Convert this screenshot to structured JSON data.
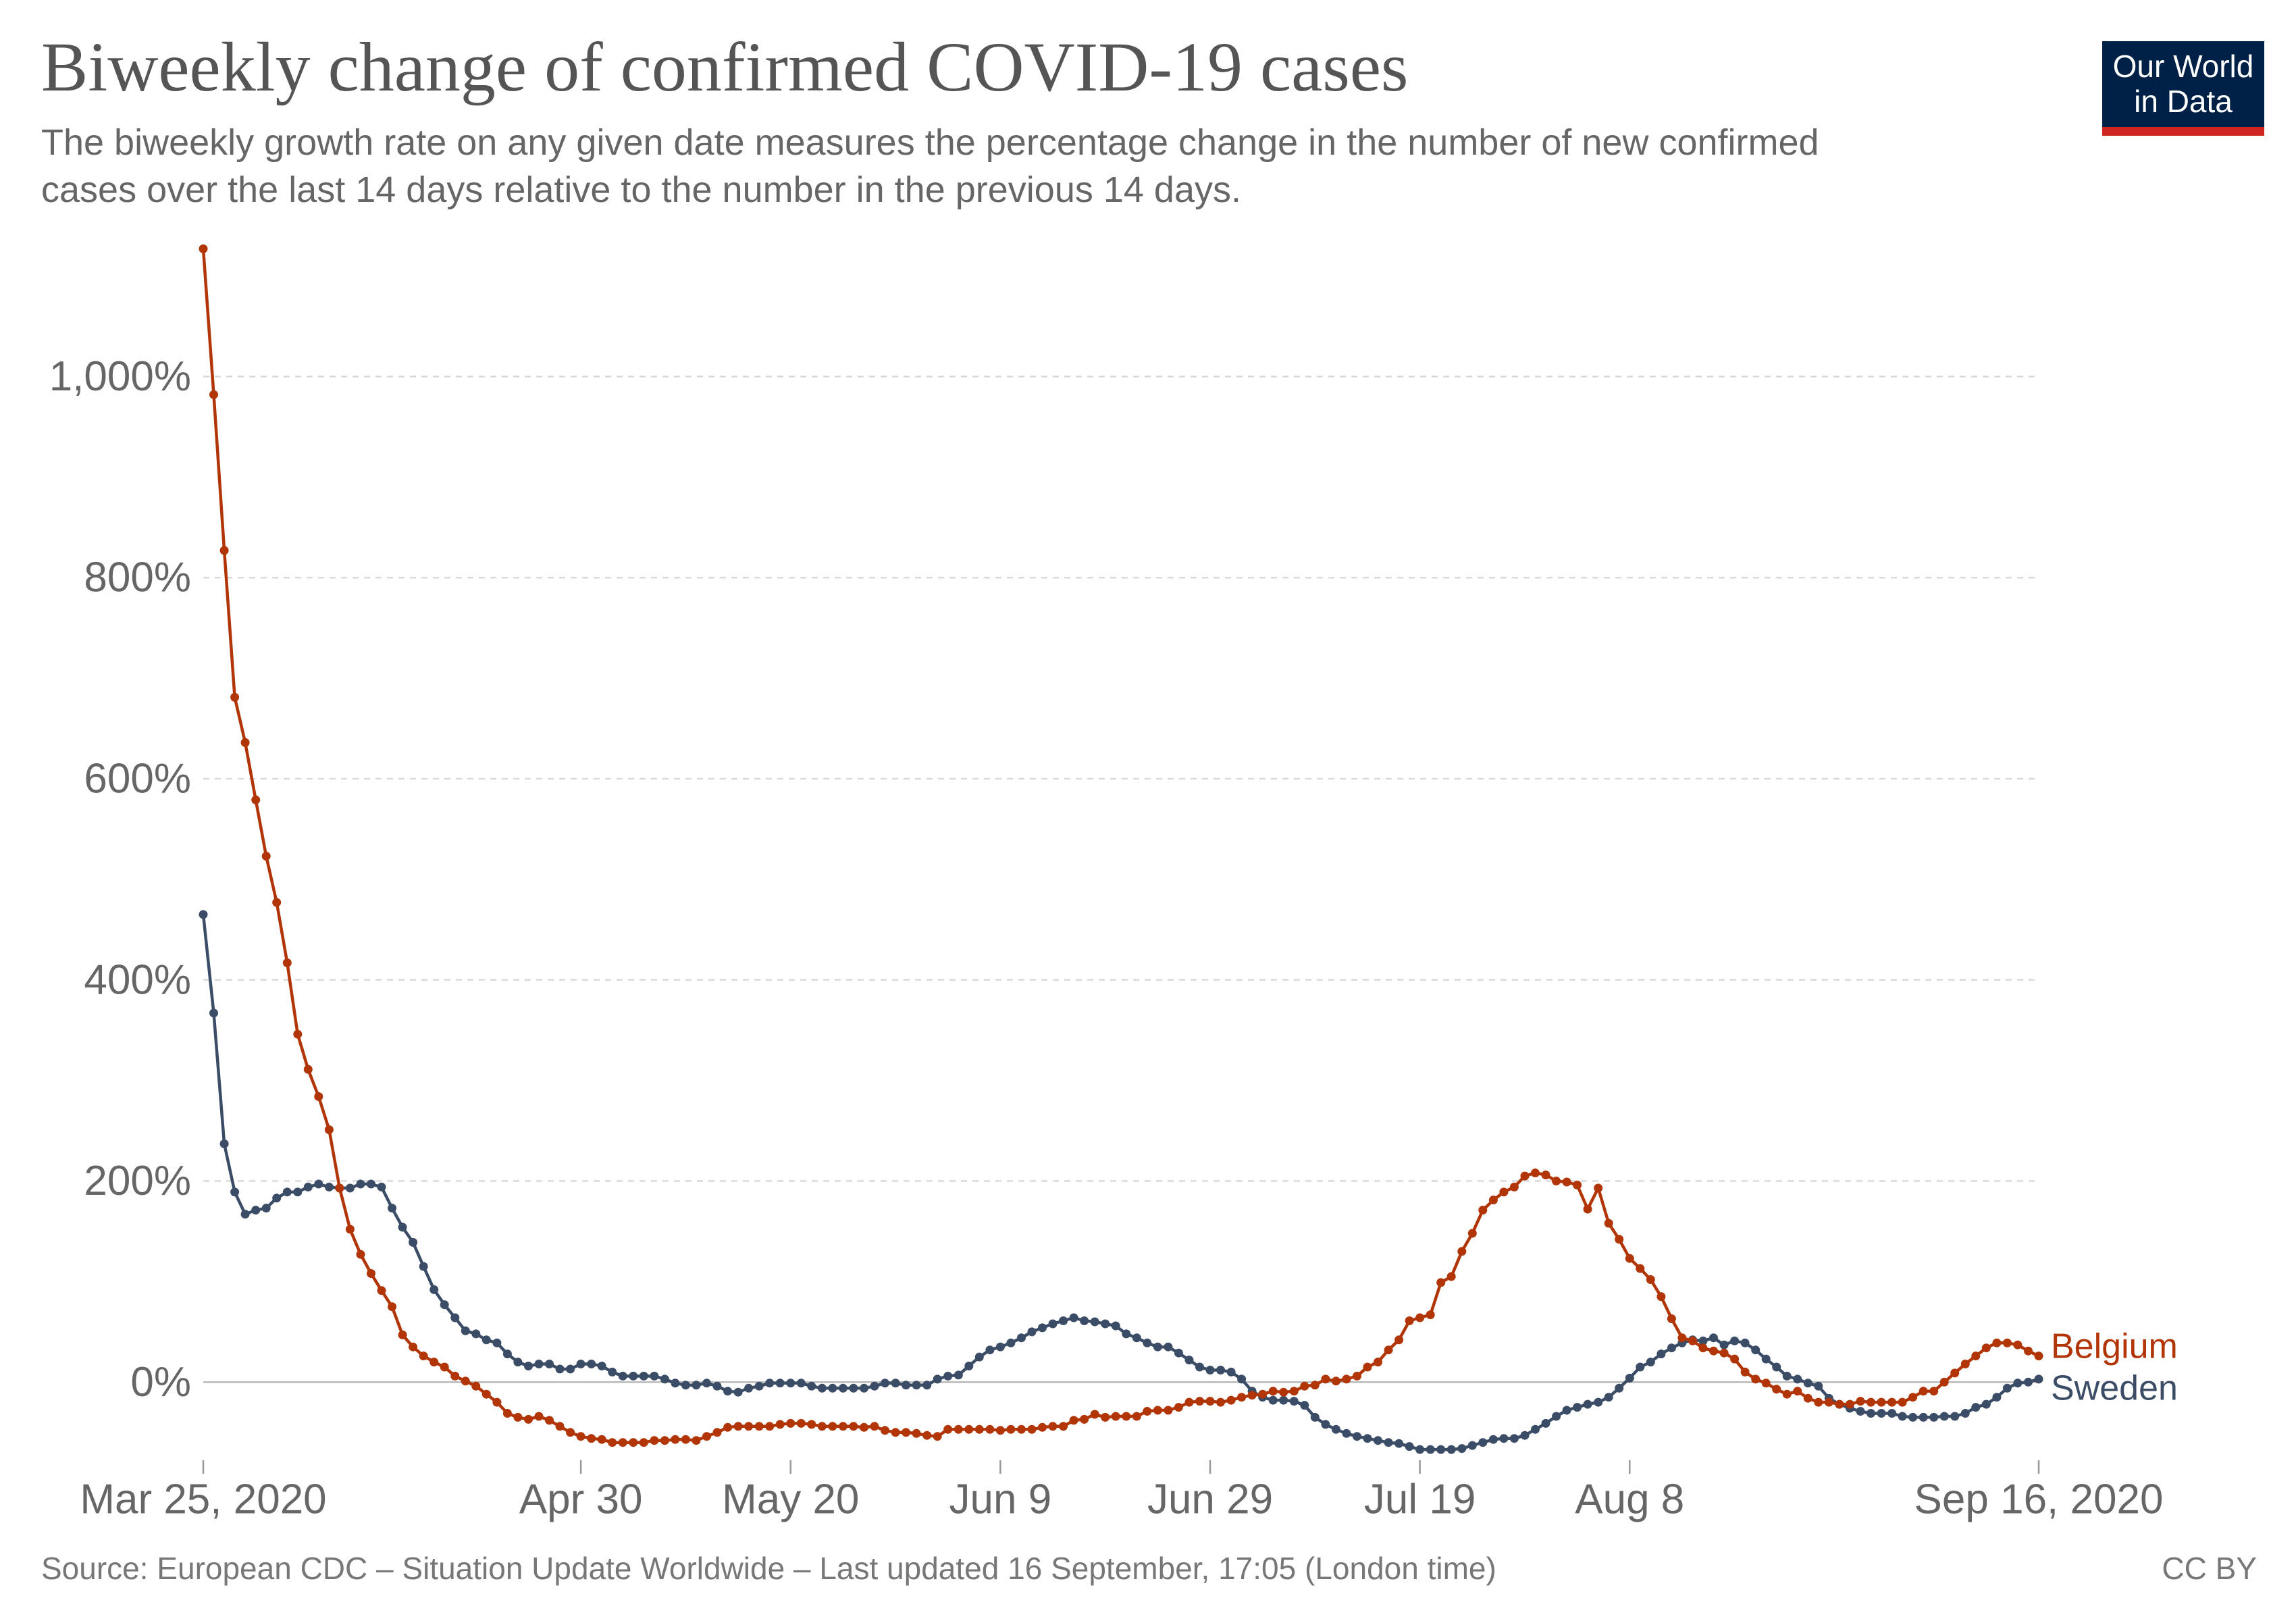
{
  "logo": {
    "line1": "Our World",
    "line2": "in Data",
    "background_color": "#002147",
    "accent_color": "#ce261e"
  },
  "footer": {
    "source": "Source: European CDC – Situation Update Worldwide – Last updated 16 September, 17:05 (London time)",
    "license": "CC BY"
  },
  "chart_data": {
    "type": "line",
    "title": "Biweekly change of confirmed COVID-19 cases",
    "subtitle_lines": [
      "The biweekly growth rate on any given date measures the percentage change in the number of new confirmed",
      "cases over the last 14 days relative to the number in the previous 14 days."
    ],
    "markers": true,
    "grid": true,
    "legend": "labels at line ends, right",
    "ylim": [
      -75,
      1140
    ],
    "yticks": [
      {
        "value": 0,
        "label": "0%"
      },
      {
        "value": 200,
        "label": "200%"
      },
      {
        "value": 400,
        "label": "400%"
      },
      {
        "value": 600,
        "label": "600%"
      },
      {
        "value": 800,
        "label": "800%"
      },
      {
        "value": 1000,
        "label": "1,000%"
      }
    ],
    "xticks": [
      {
        "date": "2020-03-25",
        "label": "Mar 25, 2020"
      },
      {
        "date": "2020-04-30",
        "label": "Apr 30"
      },
      {
        "date": "2020-05-20",
        "label": "May 20"
      },
      {
        "date": "2020-06-09",
        "label": "Jun 9"
      },
      {
        "date": "2020-06-29",
        "label": "Jun 29"
      },
      {
        "date": "2020-07-19",
        "label": "Jul 19"
      },
      {
        "date": "2020-08-08",
        "label": "Aug 8"
      },
      {
        "date": "2020-09-16",
        "label": "Sep 16, 2020"
      }
    ],
    "x": [
      "2020-03-25",
      "2020-03-26",
      "2020-03-27",
      "2020-03-28",
      "2020-03-29",
      "2020-03-30",
      "2020-03-31",
      "2020-04-01",
      "2020-04-02",
      "2020-04-03",
      "2020-04-04",
      "2020-04-05",
      "2020-04-06",
      "2020-04-07",
      "2020-04-08",
      "2020-04-09",
      "2020-04-10",
      "2020-04-11",
      "2020-04-12",
      "2020-04-13",
      "2020-04-14",
      "2020-04-15",
      "2020-04-16",
      "2020-04-17",
      "2020-04-18",
      "2020-04-19",
      "2020-04-20",
      "2020-04-21",
      "2020-04-22",
      "2020-04-23",
      "2020-04-24",
      "2020-04-25",
      "2020-04-26",
      "2020-04-27",
      "2020-04-28",
      "2020-04-29",
      "2020-04-30",
      "2020-05-01",
      "2020-05-02",
      "2020-05-03",
      "2020-05-04",
      "2020-05-05",
      "2020-05-06",
      "2020-05-07",
      "2020-05-08",
      "2020-05-09",
      "2020-05-10",
      "2020-05-11",
      "2020-05-12",
      "2020-05-13",
      "2020-05-14",
      "2020-05-15",
      "2020-05-16",
      "2020-05-17",
      "2020-05-18",
      "2020-05-19",
      "2020-05-20",
      "2020-05-21",
      "2020-05-22",
      "2020-05-23",
      "2020-05-24",
      "2020-05-25",
      "2020-05-26",
      "2020-05-27",
      "2020-05-28",
      "2020-05-29",
      "2020-05-30",
      "2020-05-31",
      "2020-06-01",
      "2020-06-02",
      "2020-06-03",
      "2020-06-04",
      "2020-06-05",
      "2020-06-06",
      "2020-06-07",
      "2020-06-08",
      "2020-06-09",
      "2020-06-10",
      "2020-06-11",
      "2020-06-12",
      "2020-06-13",
      "2020-06-14",
      "2020-06-15",
      "2020-06-16",
      "2020-06-17",
      "2020-06-18",
      "2020-06-19",
      "2020-06-20",
      "2020-06-21",
      "2020-06-22",
      "2020-06-23",
      "2020-06-24",
      "2020-06-25",
      "2020-06-26",
      "2020-06-27",
      "2020-06-28",
      "2020-06-29",
      "2020-06-30",
      "2020-07-01",
      "2020-07-02",
      "2020-07-03",
      "2020-07-04",
      "2020-07-05",
      "2020-07-06",
      "2020-07-07",
      "2020-07-08",
      "2020-07-09",
      "2020-07-10",
      "2020-07-11",
      "2020-07-12",
      "2020-07-13",
      "2020-07-14",
      "2020-07-15",
      "2020-07-16",
      "2020-07-17",
      "2020-07-18",
      "2020-07-19",
      "2020-07-20",
      "2020-07-21",
      "2020-07-22",
      "2020-07-23",
      "2020-07-24",
      "2020-07-25",
      "2020-07-26",
      "2020-07-27",
      "2020-07-28",
      "2020-07-29",
      "2020-07-30",
      "2020-07-31",
      "2020-08-01",
      "2020-08-02",
      "2020-08-03",
      "2020-08-04",
      "2020-08-05",
      "2020-08-06",
      "2020-08-07",
      "2020-08-08",
      "2020-08-09",
      "2020-08-10",
      "2020-08-11",
      "2020-08-12",
      "2020-08-13",
      "2020-08-14",
      "2020-08-15",
      "2020-08-16",
      "2020-08-17",
      "2020-08-18",
      "2020-08-19",
      "2020-08-20",
      "2020-08-21",
      "2020-08-22",
      "2020-08-23",
      "2020-08-24",
      "2020-08-25",
      "2020-08-26",
      "2020-08-27",
      "2020-08-28",
      "2020-08-29",
      "2020-08-30",
      "2020-08-31",
      "2020-09-01",
      "2020-09-02",
      "2020-09-03",
      "2020-09-04",
      "2020-09-05",
      "2020-09-06",
      "2020-09-07",
      "2020-09-08",
      "2020-09-09",
      "2020-09-10",
      "2020-09-11",
      "2020-09-12",
      "2020-09-13",
      "2020-09-14",
      "2020-09-15",
      "2020-09-16"
    ],
    "series": [
      {
        "name": "Belgium",
        "color": "#b13507",
        "values": [
          1127,
          982,
          827,
          681,
          636,
          579,
          523,
          477,
          417,
          346,
          311,
          284,
          251,
          193,
          152,
          127,
          108,
          91,
          75,
          47,
          35,
          26,
          20,
          15,
          6,
          1,
          -4,
          -12,
          -20,
          -31,
          -35,
          -37,
          -34,
          -38,
          -44,
          -50,
          -54,
          -56,
          -57,
          -60,
          -60,
          -60,
          -60,
          -58,
          -58,
          -57,
          -57,
          -58,
          -54,
          -50,
          -45,
          -44,
          -44,
          -44,
          -44,
          -42,
          -41,
          -41,
          -42,
          -44,
          -44,
          -44,
          -44,
          -45,
          -44,
          -48,
          -50,
          -50,
          -51,
          -53,
          -54,
          -47,
          -47,
          -47,
          -47,
          -47,
          -48,
          -47,
          -47,
          -47,
          -45,
          -44,
          -44,
          -38,
          -37,
          -32,
          -35,
          -34,
          -34,
          -34,
          -29,
          -28,
          -28,
          -25,
          -20,
          -19,
          -19,
          -20,
          -18,
          -15,
          -13,
          -12,
          -9,
          -10,
          -9,
          -4,
          -3,
          3,
          1,
          3,
          6,
          15,
          20,
          32,
          42,
          61,
          64,
          67,
          99,
          105,
          130,
          148,
          171,
          181,
          189,
          194,
          205,
          208,
          206,
          200,
          199,
          196,
          172,
          193,
          158,
          142,
          123,
          113,
          102,
          85,
          63,
          44,
          41,
          34,
          31,
          29,
          23,
          10,
          3,
          -1,
          -7,
          -12,
          -9,
          -16,
          -20,
          -20,
          -22,
          -22,
          -19,
          -20,
          -20,
          -20,
          -20,
          -15,
          -9,
          -9,
          0,
          9,
          18,
          26,
          34,
          39,
          39,
          37,
          31,
          26
        ]
      },
      {
        "name": "Sweden",
        "color": "#3b4d66",
        "values": [
          465,
          367,
          237,
          189,
          167,
          171,
          173,
          183,
          189,
          189,
          194,
          197,
          194,
          193,
          193,
          197,
          197,
          194,
          173,
          154,
          139,
          115,
          92,
          77,
          64,
          51,
          48,
          42,
          39,
          28,
          20,
          16,
          18,
          18,
          13,
          13,
          18,
          18,
          16,
          10,
          6,
          6,
          6,
          6,
          3,
          -1,
          -3,
          -3,
          -1,
          -4,
          -9,
          -10,
          -6,
          -4,
          -1,
          -1,
          -1,
          -1,
          -4,
          -6,
          -6,
          -6,
          -6,
          -6,
          -4,
          -1,
          -1,
          -3,
          -3,
          -3,
          3,
          6,
          7,
          16,
          25,
          32,
          35,
          39,
          44,
          50,
          54,
          58,
          61,
          64,
          61,
          60,
          58,
          56,
          48,
          44,
          39,
          35,
          35,
          29,
          22,
          15,
          12,
          12,
          10,
          3,
          -9,
          -15,
          -18,
          -18,
          -19,
          -23,
          -35,
          -42,
          -47,
          -51,
          -54,
          -56,
          -58,
          -60,
          -61,
          -64,
          -67,
          -67,
          -67,
          -67,
          -66,
          -63,
          -60,
          -57,
          -56,
          -56,
          -53,
          -47,
          -41,
          -34,
          -28,
          -25,
          -22,
          -20,
          -15,
          -6,
          4,
          15,
          20,
          28,
          34,
          39,
          42,
          41,
          44,
          37,
          41,
          39,
          32,
          23,
          15,
          6,
          3,
          -1,
          -4,
          -16,
          -22,
          -26,
          -29,
          -31,
          -31,
          -31,
          -34,
          -35,
          -35,
          -35,
          -34,
          -34,
          -31,
          -25,
          -22,
          -15,
          -6,
          -1,
          0,
          3
        ]
      }
    ]
  }
}
